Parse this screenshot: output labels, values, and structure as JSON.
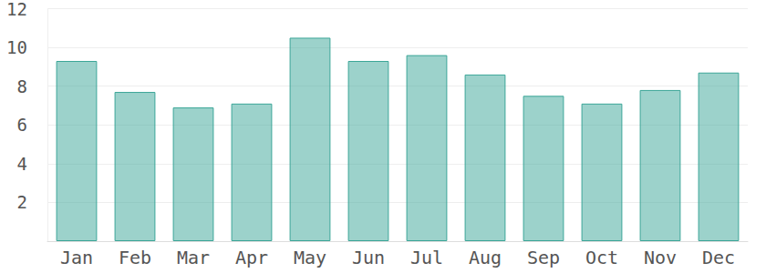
{
  "chart_data": {
    "type": "bar",
    "categories": [
      "Jan",
      "Feb",
      "Mar",
      "Apr",
      "May",
      "Jun",
      "Jul",
      "Aug",
      "Sep",
      "Oct",
      "Nov",
      "Dec"
    ],
    "values": [
      9.3,
      7.7,
      6.9,
      7.1,
      10.5,
      9.3,
      9.6,
      8.6,
      7.5,
      7.1,
      7.8,
      8.7
    ],
    "color": "#3aa597",
    "ylim": [
      0,
      12
    ],
    "yticks": [
      2,
      4,
      6,
      8,
      10,
      12
    ],
    "grid": true
  }
}
